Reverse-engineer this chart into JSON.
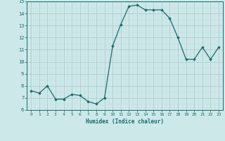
{
  "x": [
    0,
    1,
    2,
    3,
    4,
    5,
    6,
    7,
    8,
    9,
    10,
    11,
    12,
    13,
    14,
    15,
    16,
    17,
    18,
    19,
    20,
    21,
    22,
    23
  ],
  "y": [
    7.6,
    7.4,
    8.0,
    6.9,
    6.9,
    7.3,
    7.2,
    6.7,
    6.5,
    7.0,
    11.3,
    13.1,
    14.6,
    14.7,
    14.3,
    14.3,
    14.3,
    13.6,
    12.0,
    10.2,
    10.2,
    11.2,
    10.2,
    11.2
  ],
  "xlabel": "Humidex (Indice chaleur)",
  "ylim": [
    6,
    15
  ],
  "xlim_min": -0.5,
  "xlim_max": 23.5,
  "yticks": [
    6,
    7,
    8,
    9,
    10,
    11,
    12,
    13,
    14,
    15
  ],
  "xticks": [
    0,
    1,
    2,
    3,
    4,
    5,
    6,
    7,
    8,
    9,
    10,
    11,
    12,
    13,
    14,
    15,
    16,
    17,
    18,
    19,
    20,
    21,
    22,
    23
  ],
  "line_color": "#1a6b6b",
  "marker": "D",
  "marker_size": 1.8,
  "bg_color": "#cce8e8",
  "grid_color_major": "#b0cccc",
  "grid_color_minor": "#c4dede"
}
